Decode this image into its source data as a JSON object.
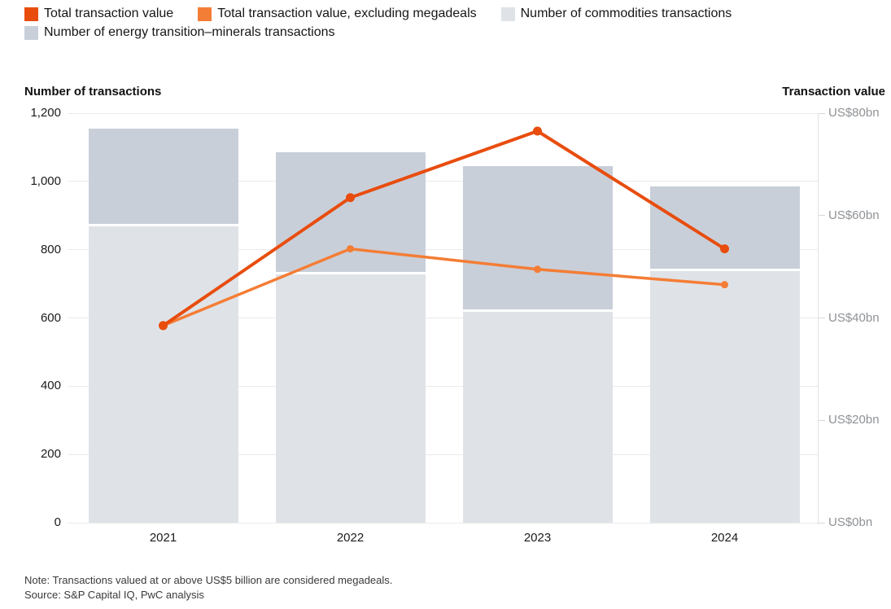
{
  "legend": [
    {
      "label": "Total transaction value",
      "color": "#e84d0e"
    },
    {
      "label": "Total transaction value, excluding megadeals",
      "color": "#f47d35"
    },
    {
      "label": "Number of commodities transactions",
      "color": "#dfe3e7"
    },
    {
      "label": "Number of energy transition–minerals transactions",
      "color": "#c9cfd9"
    }
  ],
  "chart_data": {
    "type": "combo-stacked-bar-and-line",
    "categories": [
      "2021",
      "2022",
      "2023",
      "2024"
    ],
    "bar_series": [
      {
        "name": "Number of commodities transactions",
        "axis": "left",
        "color": "#dfe3e7",
        "values": [
          870,
          730,
          620,
          740
        ]
      },
      {
        "name": "Number of energy transition–minerals transactions",
        "axis": "left",
        "color": "#c9cfd9",
        "values": [
          285,
          355,
          425,
          245
        ]
      }
    ],
    "line_series": [
      {
        "name": "Total transaction value",
        "axis": "right",
        "color": "#e84d0e",
        "values": [
          38.5,
          63.5,
          76.5,
          53.5
        ]
      },
      {
        "name": "Total transaction value, excluding megadeals",
        "axis": "right",
        "color": "#f47d35",
        "values": [
          38.5,
          53.5,
          49.5,
          46.5
        ]
      }
    ],
    "stacked": true,
    "grid": true,
    "left_axis": {
      "title": "Number of transactions",
      "min": 0,
      "max": 1200,
      "step": 200,
      "tick_labels": [
        "0",
        "200",
        "400",
        "600",
        "800",
        "1,000",
        "1,200"
      ]
    },
    "right_axis": {
      "title": "Transaction value",
      "min": 0,
      "max": 80,
      "step": 20,
      "tick_labels": [
        "US$0bn",
        "US$20bn",
        "US$40bn",
        "US$60bn",
        "US$80bn"
      ]
    }
  },
  "footer": {
    "note": "Note: Transactions valued at or above US$5 billion are considered megadeals.",
    "source": "Source: S&P Capital IQ, PwC analysis"
  }
}
